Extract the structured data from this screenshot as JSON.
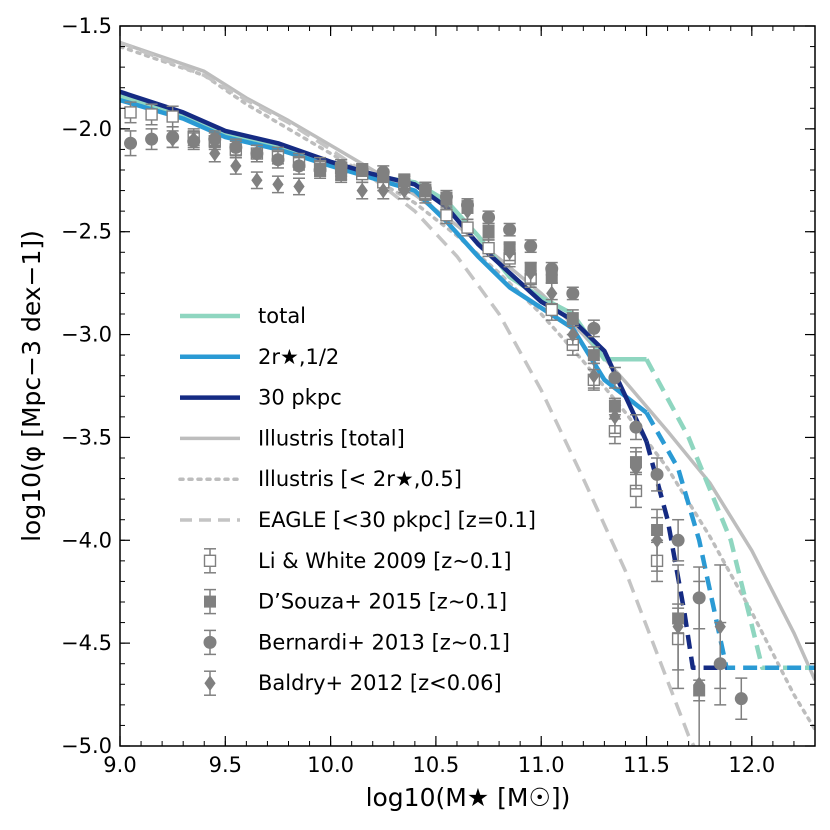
{
  "chart_data": {
    "type": "line",
    "xlabel": "log10(M★ [M☉])",
    "ylabel": "log10(φ [Mpc−3 dex−1])",
    "xlim": [
      9.0,
      12.3
    ],
    "ylim": [
      -5.0,
      -1.5
    ],
    "xticks": [
      9.0,
      9.5,
      10.0,
      10.5,
      11.0,
      11.5,
      12.0
    ],
    "xtick_labels": [
      "9.0",
      "9.5",
      "10.0",
      "10.5",
      "11.0",
      "11.5",
      "12.0"
    ],
    "yticks": [
      -1.5,
      -2.0,
      -2.5,
      -3.0,
      -3.5,
      -4.0,
      -4.5,
      -5.0
    ],
    "ytick_labels": [
      "−1.5",
      "−2.0",
      "−2.5",
      "−3.0",
      "−3.5",
      "−4.0",
      "−4.5",
      "−5.0"
    ],
    "legend_position": "lower-left",
    "series": [
      {
        "name": "total",
        "legend": "total",
        "color": "#8fd6c0",
        "style": "solid",
        "width": 4.5,
        "x": [
          9.0,
          9.3,
          9.5,
          9.75,
          10.0,
          10.2,
          10.4,
          10.55,
          10.7,
          10.85,
          11.0,
          11.15,
          11.3,
          11.5
        ],
        "y": [
          -1.84,
          -1.93,
          -2.02,
          -2.08,
          -2.17,
          -2.23,
          -2.26,
          -2.35,
          -2.52,
          -2.72,
          -2.82,
          -2.9,
          -3.12,
          -3.12
        ]
      },
      {
        "name": "total-extrap",
        "legend": "",
        "color": "#8fd6c0",
        "style": "dashed",
        "width": 4.5,
        "x": [
          11.5,
          11.7,
          11.9,
          12.05,
          12.3
        ],
        "y": [
          -3.12,
          -3.5,
          -4.0,
          -4.62,
          -4.62
        ]
      },
      {
        "name": "2r_half",
        "legend": "2r★,1/2",
        "color": "#2a9ad4",
        "style": "solid",
        "width": 4.5,
        "x": [
          9.0,
          9.3,
          9.5,
          9.75,
          10.0,
          10.2,
          10.4,
          10.55,
          10.7,
          10.85,
          11.0,
          11.15,
          11.3,
          11.5
        ],
        "y": [
          -1.86,
          -1.95,
          -2.04,
          -2.1,
          -2.18,
          -2.24,
          -2.3,
          -2.45,
          -2.62,
          -2.77,
          -2.87,
          -2.97,
          -3.22,
          -3.38
        ]
      },
      {
        "name": "2r_half-extrap",
        "legend": "",
        "color": "#2a9ad4",
        "style": "dashed",
        "width": 4.5,
        "x": [
          11.5,
          11.65,
          11.75,
          11.88,
          12.3
        ],
        "y": [
          -3.38,
          -3.65,
          -4.0,
          -4.62,
          -4.62
        ]
      },
      {
        "name": "30pkpc",
        "legend": "30 pkpc",
        "color": "#152b83",
        "style": "solid",
        "width": 4.5,
        "x": [
          9.0,
          9.3,
          9.5,
          9.75,
          10.0,
          10.2,
          10.4,
          10.55,
          10.7,
          10.85,
          11.0,
          11.15,
          11.3,
          11.5
        ],
        "y": [
          -1.82,
          -1.92,
          -2.01,
          -2.07,
          -2.16,
          -2.22,
          -2.27,
          -2.38,
          -2.56,
          -2.7,
          -2.84,
          -2.93,
          -3.08,
          -3.52
        ]
      },
      {
        "name": "30pkpc-extrap",
        "legend": "",
        "color": "#152b83",
        "style": "dashed",
        "width": 4.5,
        "x": [
          11.5,
          11.6,
          11.68,
          11.72,
          11.88
        ],
        "y": [
          -3.52,
          -3.9,
          -4.35,
          -4.62,
          -4.62
        ]
      },
      {
        "name": "illustris-total",
        "legend": "Illustris [total]",
        "color": "#bdbdbd",
        "style": "solid",
        "width": 3.5,
        "x": [
          9.0,
          9.4,
          9.6,
          9.8,
          10.0,
          10.2,
          10.4,
          10.6,
          10.8,
          11.0,
          11.2,
          11.4,
          11.6,
          11.8,
          12.0,
          12.2,
          12.3
        ],
        "y": [
          -1.58,
          -1.72,
          -1.85,
          -1.96,
          -2.08,
          -2.2,
          -2.32,
          -2.47,
          -2.63,
          -2.8,
          -3.0,
          -3.23,
          -3.47,
          -3.72,
          -4.05,
          -4.45,
          -4.68
        ]
      },
      {
        "name": "illustris-2r",
        "legend": "Illustris [< 2r★,0.5]",
        "color": "#bdbdbd",
        "style": "dotted",
        "width": 3.5,
        "x": [
          9.0,
          9.4,
          9.6,
          9.8,
          10.0,
          10.2,
          10.4,
          10.6,
          10.8,
          11.0,
          11.2,
          11.4,
          11.6,
          11.8,
          12.0,
          12.2,
          12.3
        ],
        "y": [
          -1.6,
          -1.74,
          -1.88,
          -2.0,
          -2.12,
          -2.24,
          -2.36,
          -2.52,
          -2.7,
          -2.9,
          -3.13,
          -3.38,
          -3.65,
          -3.98,
          -4.35,
          -4.75,
          -4.92
        ]
      },
      {
        "name": "eagle",
        "legend": "EAGLE [<30 pkpc] [z=0.1]",
        "color": "#c4c4c4",
        "style": "dashed",
        "width": 3.5,
        "x": [
          9.0,
          9.4,
          9.6,
          9.8,
          10.0,
          10.2,
          10.4,
          10.6,
          10.8,
          11.0,
          11.2,
          11.4,
          11.55,
          11.7,
          11.8
        ],
        "y": [
          -1.58,
          -1.74,
          -1.86,
          -1.97,
          -2.1,
          -2.24,
          -2.4,
          -2.62,
          -2.9,
          -3.27,
          -3.7,
          -4.15,
          -4.55,
          -4.95,
          -5.15
        ]
      }
    ],
    "observations": [
      {
        "name": "li-white-2009",
        "legend": "Li & White 2009 [z∼0.1]",
        "marker": "open-square",
        "color": "#808080",
        "x": [
          9.05,
          9.15,
          9.25,
          9.35,
          9.45,
          9.55,
          9.65,
          9.75,
          9.85,
          9.95,
          10.05,
          10.15,
          10.25,
          10.35,
          10.45,
          10.55,
          10.65,
          10.75,
          10.85,
          10.95,
          11.05,
          11.15,
          11.25,
          11.35,
          11.45,
          11.55,
          11.65
        ],
        "y": [
          -1.92,
          -1.93,
          -1.94,
          -2.04,
          -2.06,
          -2.1,
          -2.12,
          -2.13,
          -2.16,
          -2.18,
          -2.19,
          -2.22,
          -2.26,
          -2.27,
          -2.32,
          -2.42,
          -2.48,
          -2.58,
          -2.63,
          -2.73,
          -2.88,
          -3.05,
          -3.22,
          -3.47,
          -3.76,
          -4.1,
          -4.48
        ],
        "err": [
          0.05,
          0.05,
          0.05,
          0.04,
          0.04,
          0.04,
          0.04,
          0.04,
          0.04,
          0.04,
          0.04,
          0.04,
          0.04,
          0.04,
          0.04,
          0.04,
          0.04,
          0.04,
          0.04,
          0.04,
          0.05,
          0.05,
          0.05,
          0.06,
          0.08,
          0.1,
          0.15
        ]
      },
      {
        "name": "dsouza-2015",
        "legend": "D’Souza+ 2015 [z∼0.1]",
        "marker": "filled-square",
        "color": "#808080",
        "x": [
          9.95,
          10.05,
          10.15,
          10.25,
          10.35,
          10.45,
          10.55,
          10.65,
          10.75,
          10.85,
          10.95,
          11.05,
          11.15,
          11.25,
          11.35,
          11.45,
          11.55,
          11.65,
          11.75
        ],
        "y": [
          -2.2,
          -2.22,
          -2.2,
          -2.23,
          -2.25,
          -2.3,
          -2.34,
          -2.38,
          -2.5,
          -2.58,
          -2.68,
          -2.72,
          -2.92,
          -3.1,
          -3.35,
          -3.62,
          -3.95,
          -4.38,
          -4.73
        ],
        "err": [
          0.03,
          0.03,
          0.03,
          0.03,
          0.03,
          0.03,
          0.03,
          0.03,
          0.03,
          0.03,
          0.03,
          0.03,
          0.04,
          0.04,
          0.04,
          0.05,
          0.06,
          0.07,
          0.05
        ]
      },
      {
        "name": "bernardi-2013",
        "legend": "Bernardi+ 2013 [z∼0.1]",
        "marker": "circle",
        "color": "#808080",
        "x": [
          9.05,
          9.15,
          9.25,
          9.35,
          9.45,
          9.55,
          9.65,
          9.75,
          9.85,
          9.95,
          10.05,
          10.15,
          10.25,
          10.35,
          10.45,
          10.55,
          10.65,
          10.75,
          10.85,
          10.95,
          11.05,
          11.15,
          11.25,
          11.35,
          11.45,
          11.55,
          11.65,
          11.75,
          11.85,
          11.95
        ],
        "y": [
          -2.07,
          -2.05,
          -2.04,
          -2.06,
          -2.05,
          -2.09,
          -2.12,
          -2.15,
          -2.18,
          -2.2,
          -2.18,
          -2.2,
          -2.21,
          -2.26,
          -2.29,
          -2.33,
          -2.37,
          -2.43,
          -2.49,
          -2.57,
          -2.68,
          -2.8,
          -2.97,
          -3.21,
          -3.45,
          -3.68,
          -4.0,
          -4.28,
          -4.6,
          -4.77
        ],
        "err": [
          0.06,
          0.05,
          0.05,
          0.04,
          0.04,
          0.04,
          0.04,
          0.04,
          0.04,
          0.03,
          0.03,
          0.03,
          0.03,
          0.03,
          0.03,
          0.03,
          0.03,
          0.03,
          0.03,
          0.03,
          0.03,
          0.03,
          0.04,
          0.05,
          0.06,
          0.08,
          0.1,
          0.15,
          0.2,
          0.1
        ]
      },
      {
        "name": "baldry-2012",
        "legend": "Baldry+ 2012 [z<0.06]",
        "marker": "diamond",
        "color": "#808080",
        "x": [
          9.25,
          9.35,
          9.45,
          9.55,
          9.65,
          9.75,
          9.85,
          9.95,
          10.05,
          10.15,
          10.25,
          10.35,
          10.45,
          10.55,
          10.65,
          10.75,
          10.85,
          10.95,
          11.05,
          11.15,
          11.25,
          11.35,
          11.45,
          11.55,
          11.65,
          11.75,
          11.85
        ],
        "y": [
          -2.05,
          -2.05,
          -2.12,
          -2.18,
          -2.25,
          -2.27,
          -2.28,
          -2.2,
          -2.22,
          -2.3,
          -2.3,
          -2.3,
          -2.3,
          -2.35,
          -2.4,
          -2.5,
          -2.6,
          -2.7,
          -2.8,
          -3.0,
          -3.2,
          -3.4,
          -3.65,
          -4.0,
          -4.42,
          -4.7,
          -4.42
        ],
        "err": [
          0.04,
          0.04,
          0.04,
          0.04,
          0.04,
          0.04,
          0.04,
          0.04,
          0.04,
          0.04,
          0.04,
          0.04,
          0.04,
          0.04,
          0.04,
          0.04,
          0.04,
          0.05,
          0.05,
          0.05,
          0.06,
          0.08,
          0.1,
          0.15,
          0.3,
          0.5,
          0.3
        ]
      }
    ]
  }
}
